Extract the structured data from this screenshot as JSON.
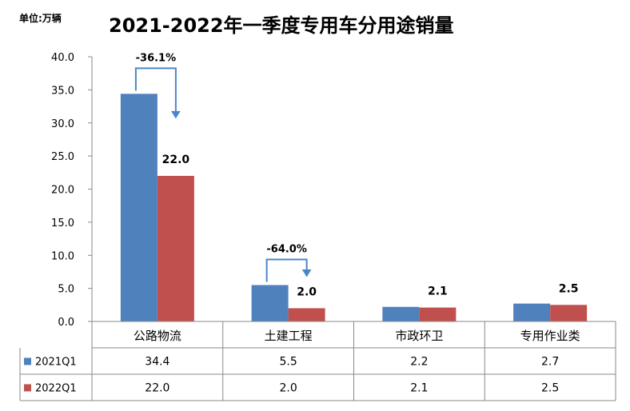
{
  "chart_unit": "单位:万辆",
  "chart_data": {
    "type": "bar",
    "title": "2021-2022年一季度专用车分用途销量",
    "categories": [
      "公路物流",
      "土建工程",
      "市政环卫",
      "专用作业类"
    ],
    "series": [
      {
        "name": "2021Q1",
        "values": [
          34.4,
          5.5,
          2.2,
          2.7
        ],
        "color": "#4f81bd"
      },
      {
        "name": "2022Q1",
        "values": [
          22.0,
          2.0,
          2.1,
          2.5
        ],
        "color": "#c0504d"
      }
    ],
    "data_labels": [
      "22.0",
      "2.0",
      "2.1",
      "2.5"
    ],
    "ylim": [
      0,
      40
    ],
    "yticks": [
      "0.0",
      "5.0",
      "10.0",
      "15.0",
      "20.0",
      "25.0",
      "30.0",
      "35.0",
      "40.0"
    ],
    "table": [
      {
        "name": "2021Q1",
        "cells": [
          "34.4",
          "5.5",
          "2.2",
          "2.7"
        ]
      },
      {
        "name": "2022Q1",
        "cells": [
          "22.0",
          "2.0",
          "2.1",
          "2.5"
        ]
      }
    ],
    "annotations": [
      {
        "text": "-36.1%",
        "category": 0
      },
      {
        "text": "-64.0%",
        "category": 1
      }
    ],
    "grid": false,
    "legend": "data table"
  }
}
